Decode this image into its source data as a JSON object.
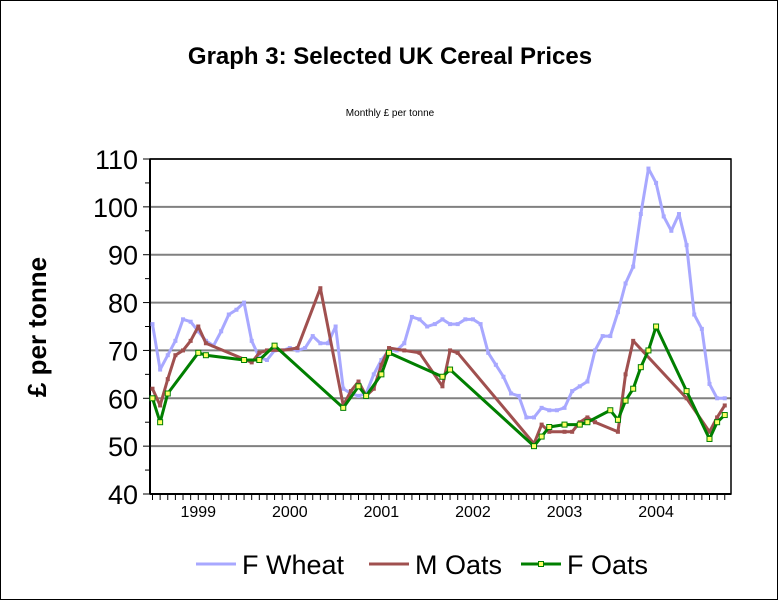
{
  "chart_data": {
    "type": "line",
    "title": "Graph 3: Selected UK Cereal Prices",
    "subtitle": "Monthly £ per tonne",
    "ylabel": "£ per tonne",
    "xlabel": "",
    "ylim": [
      40,
      110
    ],
    "yticks": [
      40,
      50,
      60,
      70,
      80,
      90,
      100,
      110
    ],
    "xlim": [
      "1999-01",
      "2005-04"
    ],
    "x_tick_labels": [
      "1999",
      "2000",
      "2001",
      "2002",
      "2003",
      "2004"
    ],
    "grid": "horizontal",
    "legend": "bottom",
    "series": [
      {
        "name": "F Wheat",
        "color": "#a8a8ff",
        "markers": false,
        "points": [
          [
            "1999-01",
            75.5
          ],
          [
            "1999-02",
            66
          ],
          [
            "1999-03",
            69
          ],
          [
            "1999-04",
            72
          ],
          [
            "1999-05",
            76.5
          ],
          [
            "1999-06",
            76
          ],
          [
            "1999-07",
            74
          ],
          [
            "1999-08",
            72
          ],
          [
            "1999-09",
            71
          ],
          [
            "1999-10",
            74
          ],
          [
            "1999-11",
            77.5
          ],
          [
            "1999-12",
            78.5
          ],
          [
            "2000-01",
            80
          ],
          [
            "2000-02",
            72
          ],
          [
            "2000-03",
            68.5
          ],
          [
            "2000-04",
            68
          ],
          [
            "2000-05",
            70
          ],
          [
            "2000-06",
            70
          ],
          [
            "2000-07",
            70.5
          ],
          [
            "2000-08",
            70
          ],
          [
            "2000-09",
            70.5
          ],
          [
            "2000-10",
            73
          ],
          [
            "2000-11",
            71.5
          ],
          [
            "2000-12",
            71.5
          ],
          [
            "2001-01",
            75
          ],
          [
            "2001-02",
            62
          ],
          [
            "2001-03",
            61
          ],
          [
            "2001-04",
            60.5
          ],
          [
            "2001-05",
            61
          ],
          [
            "2001-06",
            65
          ],
          [
            "2001-07",
            68
          ],
          [
            "2001-08",
            70
          ],
          [
            "2001-09",
            70
          ],
          [
            "2001-10",
            71.5
          ],
          [
            "2001-11",
            77
          ],
          [
            "2001-12",
            76.5
          ],
          [
            "2002-01",
            75
          ],
          [
            "2002-02",
            75.5
          ],
          [
            "2002-03",
            76.5
          ],
          [
            "2002-04",
            75.5
          ],
          [
            "2002-05",
            75.5
          ],
          [
            "2002-06",
            76.5
          ],
          [
            "2002-07",
            76.5
          ],
          [
            "2002-08",
            75.5
          ],
          [
            "2002-09",
            69.5
          ],
          [
            "2002-10",
            67
          ],
          [
            "2002-11",
            64.5
          ],
          [
            "2002-12",
            61
          ],
          [
            "2003-01",
            60.5
          ],
          [
            "2003-02",
            56
          ],
          [
            "2003-03",
            56
          ],
          [
            "2003-04",
            58
          ],
          [
            "2003-05",
            57.5
          ],
          [
            "2003-06",
            57.5
          ],
          [
            "2003-07",
            58
          ],
          [
            "2003-08",
            61.5
          ],
          [
            "2003-09",
            62.5
          ],
          [
            "2003-10",
            63.5
          ],
          [
            "2003-11",
            70
          ],
          [
            "2003-12",
            73
          ],
          [
            "2004-01",
            73
          ],
          [
            "2004-02",
            78
          ],
          [
            "2004-03",
            84
          ],
          [
            "2004-04",
            87.5
          ],
          [
            "2004-05",
            98.5
          ],
          [
            "2004-06",
            108
          ],
          [
            "2004-07",
            105
          ],
          [
            "2004-08",
            98
          ],
          [
            "2004-09",
            95
          ],
          [
            "2004-10",
            98.5
          ],
          [
            "2004-11",
            92
          ],
          [
            "2004-12",
            77.5
          ],
          [
            "2005-01",
            74.5
          ],
          [
            "2005-02",
            63
          ],
          [
            "2005-03",
            60
          ],
          [
            "2005-04",
            60
          ]
        ]
      },
      {
        "name": "M Oats",
        "color": "#a0504f",
        "markers": false,
        "points": [
          [
            "1999-01",
            62
          ],
          [
            "1999-02",
            58.5
          ],
          [
            "1999-03",
            64
          ],
          [
            "1999-04",
            69
          ],
          [
            "1999-05",
            70
          ],
          [
            "1999-06",
            72
          ],
          [
            "1999-07",
            75
          ],
          [
            "1999-08",
            71.5
          ],
          [
            "2000-02",
            67.5
          ],
          [
            "2000-03",
            69.5
          ],
          [
            "2000-04",
            70
          ],
          [
            "2000-06",
            70
          ],
          [
            "2000-08",
            70.5
          ],
          [
            "2000-11",
            83
          ],
          [
            "2001-02",
            58.5
          ],
          [
            "2001-03",
            61.5
          ],
          [
            "2001-04",
            63.5
          ],
          [
            "2001-05",
            60.5
          ],
          [
            "2001-06",
            62
          ],
          [
            "2001-07",
            67
          ],
          [
            "2001-08",
            70.5
          ],
          [
            "2001-10",
            70
          ],
          [
            "2001-12",
            69.5
          ],
          [
            "2002-03",
            62.5
          ],
          [
            "2002-04",
            70
          ],
          [
            "2002-05",
            69.5
          ],
          [
            "2003-03",
            50.5
          ],
          [
            "2003-04",
            54.5
          ],
          [
            "2003-05",
            53
          ],
          [
            "2003-07",
            53
          ],
          [
            "2003-08",
            53
          ],
          [
            "2003-09",
            55
          ],
          [
            "2003-10",
            56
          ],
          [
            "2003-11",
            55
          ],
          [
            "2004-02",
            53
          ],
          [
            "2004-03",
            65
          ],
          [
            "2004-04",
            72
          ],
          [
            "2004-11",
            60
          ],
          [
            "2005-02",
            53
          ],
          [
            "2005-03",
            56
          ],
          [
            "2005-04",
            58.5
          ]
        ]
      },
      {
        "name": "F Oats",
        "color": "#007f00",
        "marker_color": "#ffff66",
        "markers": true,
        "points": [
          [
            "1999-01",
            60
          ],
          [
            "1999-02",
            55
          ],
          [
            "1999-03",
            61
          ],
          [
            "1999-07",
            69.5
          ],
          [
            "1999-08",
            69
          ],
          [
            "2000-01",
            68
          ],
          [
            "2000-03",
            68
          ],
          [
            "2000-05",
            71
          ],
          [
            "2001-02",
            58
          ],
          [
            "2001-04",
            62.5
          ],
          [
            "2001-05",
            60.5
          ],
          [
            "2001-07",
            65
          ],
          [
            "2001-08",
            69.5
          ],
          [
            "2002-03",
            64.5
          ],
          [
            "2002-04",
            66
          ],
          [
            "2003-03",
            50
          ],
          [
            "2003-04",
            52
          ],
          [
            "2003-05",
            54
          ],
          [
            "2003-07",
            54.5
          ],
          [
            "2003-09",
            54.5
          ],
          [
            "2003-10",
            55
          ],
          [
            "2004-01",
            57.5
          ],
          [
            "2004-02",
            55.5
          ],
          [
            "2004-03",
            59.5
          ],
          [
            "2004-04",
            62
          ],
          [
            "2004-05",
            66.5
          ],
          [
            "2004-06",
            70
          ],
          [
            "2004-07",
            75
          ],
          [
            "2004-11",
            61.5
          ],
          [
            "2005-02",
            51.5
          ],
          [
            "2005-03",
            55
          ],
          [
            "2005-04",
            56.5
          ]
        ]
      }
    ]
  }
}
